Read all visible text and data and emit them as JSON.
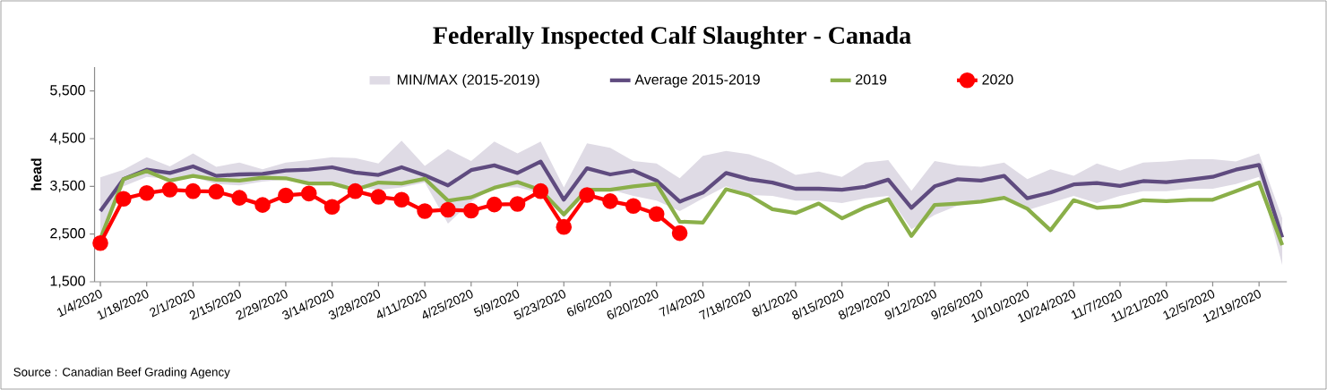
{
  "chart_data": {
    "type": "line",
    "title": "Federally Inspected Calf Slaughter - Canada",
    "ylabel": "head",
    "categories": [
      "1/4/2020",
      null,
      "1/18/2020",
      null,
      "2/1/2020",
      null,
      "2/15/2020",
      null,
      "2/29/2020",
      null,
      "3/14/2020",
      null,
      "3/28/2020",
      null,
      "4/11/2020",
      null,
      "4/25/2020",
      null,
      "5/9/2020",
      null,
      "5/23/2020",
      null,
      "6/6/2020",
      null,
      "6/20/2020",
      null,
      "7/4/2020",
      null,
      "7/18/2020",
      null,
      "8/1/2020",
      null,
      "8/15/2020",
      null,
      "8/29/2020",
      null,
      "9/12/2020",
      null,
      "9/26/2020",
      null,
      "10/10/2020",
      null,
      "10/24/2020",
      null,
      "11/7/2020",
      null,
      "11/21/2020",
      null,
      "12/5/2020",
      null,
      "12/19/2020",
      null
    ],
    "series": [
      {
        "name": "Average 2015-2019",
        "color": "#5f4b7f",
        "values": [
          2980,
          3650,
          3850,
          3780,
          3920,
          3720,
          3750,
          3760,
          3830,
          3850,
          3900,
          3790,
          3740,
          3900,
          3730,
          3520,
          3840,
          3940,
          3780,
          4020,
          3220,
          3880,
          3750,
          3830,
          3620,
          3180,
          3370,
          3780,
          3650,
          3580,
          3450,
          3450,
          3430,
          3490,
          3640,
          3050,
          3500,
          3650,
          3620,
          3720,
          3250,
          3370,
          3540,
          3570,
          3510,
          3610,
          3590,
          3640,
          3700,
          3850,
          3950,
          2430
        ],
        "lower": [
          2500,
          3500,
          3700,
          3650,
          3700,
          3550,
          3520,
          3600,
          3640,
          3580,
          3560,
          3500,
          3420,
          3480,
          3580,
          2720,
          3180,
          3480,
          3480,
          3360,
          2850,
          3380,
          3430,
          3300,
          3200,
          2980,
          3250,
          3500,
          3320,
          3300,
          3200,
          3200,
          3150,
          3250,
          3300,
          2600,
          2900,
          3100,
          3200,
          3300,
          3000,
          3150,
          3300,
          3150,
          3300,
          3400,
          3400,
          3450,
          3450,
          3550,
          3700,
          1850
        ],
        "upper": [
          3690,
          3850,
          4110,
          3920,
          4190,
          3910,
          4000,
          3860,
          4000,
          4050,
          4110,
          4090,
          3980,
          4460,
          3930,
          4280,
          4030,
          4440,
          4190,
          4440,
          3480,
          4400,
          4310,
          4030,
          3980,
          3670,
          4140,
          4240,
          4170,
          4000,
          3740,
          3810,
          3700,
          4000,
          4050,
          3410,
          4030,
          3940,
          3910,
          4000,
          3650,
          3860,
          3720,
          3980,
          3830,
          4000,
          4020,
          4070,
          4070,
          4020,
          4190,
          2830
        ]
      },
      {
        "name": "2019",
        "color": "#8aaf49",
        "values": [
          2400,
          3650,
          3820,
          3620,
          3720,
          3640,
          3620,
          3680,
          3670,
          3560,
          3560,
          3430,
          3580,
          3560,
          3660,
          3200,
          3270,
          3470,
          3590,
          3420,
          2910,
          3430,
          3430,
          3500,
          3550,
          2760,
          2740,
          3440,
          3310,
          3020,
          2940,
          3140,
          2830,
          3060,
          3230,
          2460,
          3110,
          3140,
          3180,
          3260,
          3030,
          2580,
          3210,
          3050,
          3080,
          3210,
          3190,
          3220,
          3220,
          3400,
          3580,
          2270
        ]
      },
      {
        "name": "2020",
        "color": "#ff0000",
        "marker": "circle",
        "values": [
          2310,
          3240,
          3360,
          3430,
          3400,
          3390,
          3260,
          3110,
          3310,
          3350,
          3070,
          3400,
          3280,
          3220,
          2980,
          3010,
          2990,
          3120,
          3130,
          3400,
          2650,
          3320,
          3190,
          3090,
          2920,
          2520,
          null,
          null,
          null,
          null,
          null,
          null,
          null,
          null,
          null,
          null,
          null,
          null,
          null,
          null,
          null,
          null,
          null,
          null,
          null,
          null,
          null,
          null,
          null,
          null,
          null,
          null
        ]
      }
    ],
    "ylim": [
      1500,
      6000
    ],
    "yticks": [
      {
        "value": 1500,
        "label": "1,500"
      },
      {
        "value": 2500,
        "label": "2,500"
      },
      {
        "value": 3500,
        "label": "3,500"
      },
      {
        "value": 4500,
        "label": "4,500"
      },
      {
        "value": 5500,
        "label": "5,500"
      }
    ],
    "legend": "top",
    "line_style": "solid",
    "annotations": [
      "MIN/MAX (2015-2019)",
      "Source : Canadian Beef Grading Agency"
    ]
  }
}
